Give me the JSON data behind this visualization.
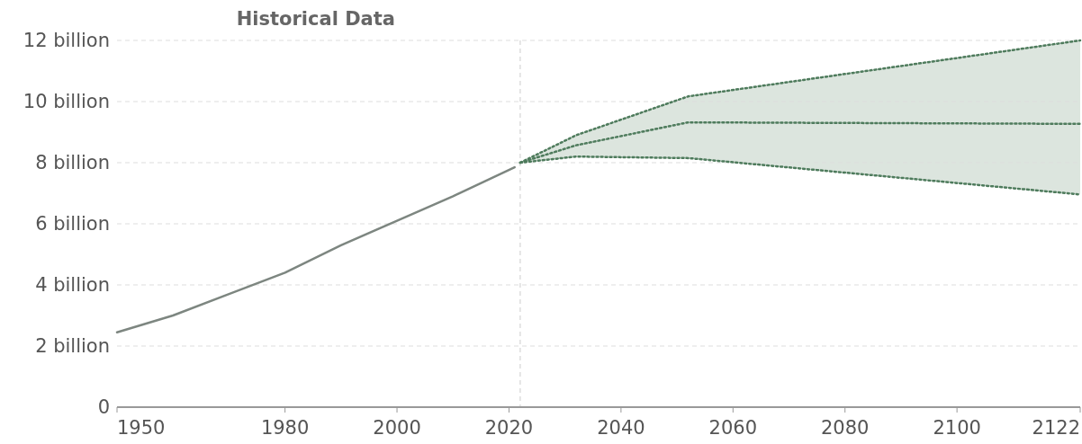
{
  "chart_data": {
    "type": "line",
    "title": "Historical Data",
    "x": [
      1950,
      1960,
      1970,
      1980,
      1990,
      2000,
      2010,
      2021
    ],
    "series": [
      {
        "color": "#7d8680",
        "line_style": "solid",
        "values": [
          2.45,
          3.0,
          3.7,
          4.4,
          5.3,
          6.1,
          6.9,
          7.85
        ]
      },
      {
        "color": "#4e7b5c",
        "line_style": "dotted",
        "x": [
          2022,
          2032,
          2052,
          2122
        ],
        "values": [
          8.0,
          8.57,
          9.32,
          9.27
        ],
        "lower": [
          8.0,
          8.2,
          8.15,
          6.96
        ],
        "upper": [
          8.0,
          8.9,
          10.17,
          12.0
        ]
      },
      {
        "color": "#4e7b5c",
        "line_style": "dotted",
        "x": [
          2022,
          2032,
          2052,
          2122
        ],
        "values": [
          8.0,
          8.9,
          10.17,
          12.0
        ]
      },
      {
        "color": "#4e7b5c",
        "line_style": "dotted",
        "x": [
          2022,
          2032,
          2052,
          2122
        ],
        "values": [
          8.0,
          8.2,
          8.15,
          6.96
        ]
      }
    ],
    "xlim": [
      1950,
      2122
    ],
    "xticks": [
      1950,
      1980,
      2000,
      2020,
      2040,
      2060,
      2080,
      2100,
      2122
    ],
    "ylim": [
      0,
      12
    ],
    "yticks": [
      {
        "value": 0,
        "label": "0"
      },
      {
        "value": 2,
        "label": "2 billion"
      },
      {
        "value": 4,
        "label": "4 billion"
      },
      {
        "value": 6,
        "label": "6 billion"
      },
      {
        "value": 8,
        "label": "8 billion"
      },
      {
        "value": 10,
        "label": "10 billion"
      },
      {
        "value": 12,
        "label": "12 billion"
      }
    ],
    "grid": "y",
    "marker": "none",
    "ref_lines": [
      {
        "axis": "x",
        "value": 2022,
        "color": "#cccccc",
        "line_style": "dashed"
      }
    ]
  }
}
